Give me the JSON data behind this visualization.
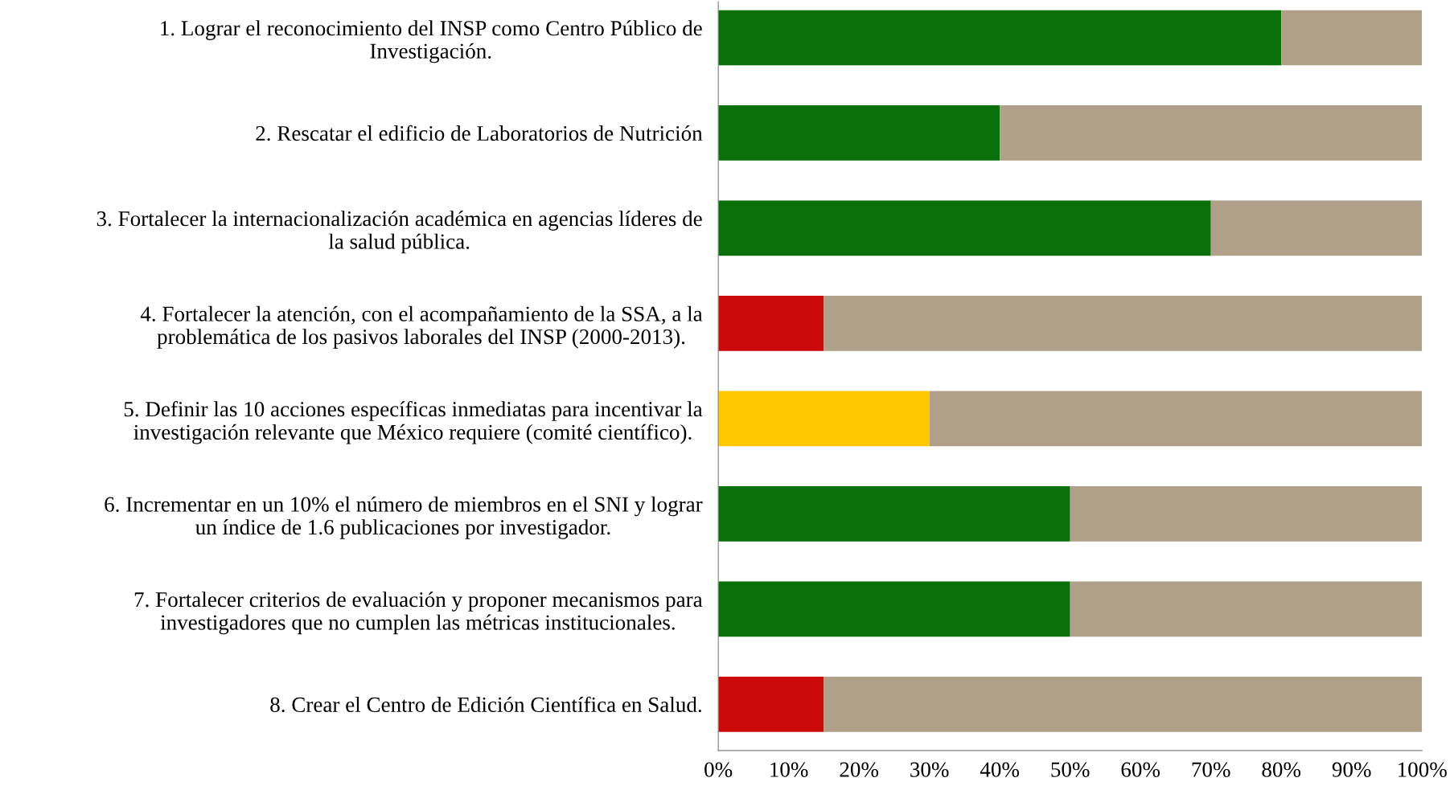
{
  "chart_data": {
    "type": "bar",
    "orientation": "horizontal",
    "stacked": true,
    "categories": [
      "1. Lograr el reconocimiento del INSP como Centro Público de\nInvestigación.",
      "2. Rescatar el edificio de Laboratorios de Nutrición",
      "3. Fortalecer la internacionalización académica en agencias líderes de\nla salud pública.",
      "4. Fortalecer la atención, con el acompañamiento de la SSA, a la\nproblemática de los pasivos laborales del INSP (2000-2013).",
      "5. Definir las 10 acciones específicas inmediatas para incentivar la\ninvestigación relevante que México requiere (comité científico).",
      "6. Incrementar en un 10% el número de miembros en el SNI y lograr\nun índice de 1.6 publicaciones por investigador.",
      "7. Fortalecer criterios de evaluación y proponer mecanismos para\ninvestigadores que no cumplen las métricas institucionales.",
      "8. Crear el Centro de Edición Científica en Salud."
    ],
    "series": [
      {
        "colors": [
          "#0a700a",
          "#0a700a",
          "#0a700a",
          "#cc0a0a",
          "#ffc800",
          "#0a700a",
          "#0a700a",
          "#cc0a0a"
        ],
        "values": [
          80,
          40,
          70,
          15,
          30,
          50,
          50,
          15
        ]
      },
      {
        "color": "#b0a08a",
        "values": [
          20,
          60,
          30,
          85,
          70,
          50,
          50,
          85
        ]
      }
    ],
    "xlim": [
      0,
      100
    ],
    "xticks": [
      {
        "value": 0,
        "label": "0%"
      },
      {
        "value": 10,
        "label": "10%"
      },
      {
        "value": 20,
        "label": "20%"
      },
      {
        "value": 30,
        "label": "30%"
      },
      {
        "value": 40,
        "label": "40%"
      },
      {
        "value": 50,
        "label": "50%"
      },
      {
        "value": 60,
        "label": "60%"
      },
      {
        "value": 70,
        "label": "70%"
      },
      {
        "value": 80,
        "label": "80%"
      },
      {
        "value": 90,
        "label": "90%"
      },
      {
        "value": 100,
        "label": "100%"
      }
    ],
    "grid": false
  }
}
